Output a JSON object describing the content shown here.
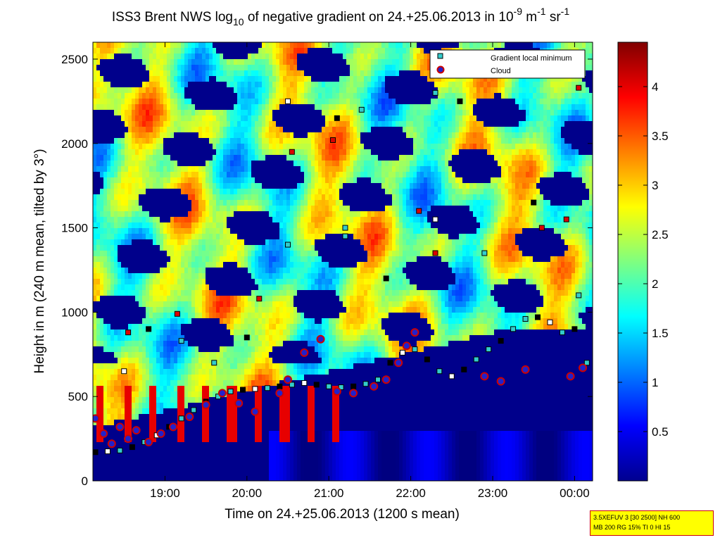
{
  "chart_data": {
    "type": "heatmap",
    "title": {
      "prefix": "ISS3 Brent NWS log",
      "sub": "10",
      "mid": " of negative gradient on 24.+25.06.2013 in 10",
      "exp1": "-9",
      "unit1": " m",
      "exp2": "-1",
      "unit2": " sr",
      "exp3": "-1"
    },
    "xlabel": "Time on 24.+25.06.2013 (1200 s mean)",
    "ylabel": "Height in m (240 m mean, tilted by 3°)",
    "xlim_hours": [
      18.12,
      24.22
    ],
    "ylim": [
      0,
      2600
    ],
    "x_ticks": [
      {
        "value": 19.0,
        "label": "19:00"
      },
      {
        "value": 20.0,
        "label": "20:00"
      },
      {
        "value": 21.0,
        "label": "21:00"
      },
      {
        "value": 22.0,
        "label": "22:00"
      },
      {
        "value": 23.0,
        "label": "23:00"
      },
      {
        "value": 24.0,
        "label": "00:00"
      }
    ],
    "y_ticks": [
      0,
      500,
      1000,
      1500,
      2000,
      2500
    ],
    "colorbar": {
      "range": [
        0.0,
        4.45
      ],
      "ticks": [
        0.5,
        1,
        1.5,
        2,
        2.5,
        3,
        3.5,
        4
      ],
      "tick_labels": [
        "0.5",
        "1",
        "1.5",
        "2",
        "2.5",
        "3",
        "3.5",
        "4"
      ],
      "colormap": "jet"
    },
    "legend": {
      "placement": "top-right",
      "entries": [
        "Gradient local minimum",
        "Cloud"
      ]
    },
    "series": [
      {
        "name": "Gradient local minimum",
        "marker": "square",
        "x": [
          18.15,
          18.3,
          18.45,
          18.6,
          18.75,
          18.9,
          19.05,
          19.2,
          19.35,
          19.5,
          19.65,
          19.8,
          19.95,
          20.1,
          20.25,
          20.4,
          20.55,
          20.7,
          20.85,
          21.0,
          21.15,
          21.3,
          21.45,
          21.6,
          21.75,
          21.9,
          22.05,
          22.2,
          22.35,
          22.5,
          22.65,
          22.8,
          22.95,
          23.1,
          23.25,
          23.4,
          23.55,
          23.7,
          23.85,
          24.0,
          24.15,
          18.5,
          18.8,
          19.2,
          19.6,
          20.0,
          20.5,
          21.2,
          21.7,
          22.3,
          22.9,
          23.5,
          24.05,
          20.5,
          21.1,
          21.4,
          22.3,
          22.6,
          21.2
        ],
        "y": [
          170,
          175,
          180,
          200,
          230,
          270,
          320,
          370,
          420,
          470,
          500,
          530,
          540,
          545,
          550,
          560,
          570,
          580,
          570,
          560,
          555,
          560,
          575,
          600,
          700,
          760,
          780,
          720,
          650,
          620,
          660,
          720,
          780,
          830,
          900,
          960,
          970,
          940,
          880,
          900,
          700,
          650,
          900,
          830,
          700,
          850,
          1400,
          1500,
          1200,
          1550,
          1350,
          1650,
          1100,
          2250,
          2150,
          2200,
          2300,
          2250,
          1450
        ]
      },
      {
        "name": "Cloud",
        "marker": "circle",
        "x": [
          18.15,
          18.25,
          18.35,
          18.45,
          18.55,
          18.65,
          18.8,
          18.95,
          19.1,
          19.3,
          19.5,
          19.7,
          19.9,
          20.1,
          20.4,
          20.5,
          20.7,
          20.9,
          21.1,
          21.3,
          21.55,
          21.7,
          21.85,
          21.95,
          22.05,
          22.9,
          23.1,
          23.4,
          23.95,
          24.1
        ],
        "y": [
          370,
          280,
          220,
          320,
          250,
          300,
          230,
          280,
          320,
          380,
          450,
          520,
          460,
          410,
          520,
          600,
          760,
          840,
          530,
          520,
          560,
          600,
          700,
          800,
          880,
          620,
          590,
          660,
          620,
          670
        ]
      },
      {
        "name": "Gradient local minimum (red markers)",
        "marker": "square-red",
        "x": [
          18.55,
          19.15,
          20.15,
          20.55,
          21.05,
          22.1,
          22.3,
          23.6,
          23.9,
          24.05
        ],
        "y": [
          880,
          990,
          1080,
          1950,
          2020,
          1600,
          1350,
          1500,
          1550,
          2330
        ]
      }
    ]
  },
  "stamp": {
    "line1": "3.5XEFUV 3 [30 2500] NH 600",
    "line2": "MB 200 RG 15% TI 0 HI 15"
  }
}
